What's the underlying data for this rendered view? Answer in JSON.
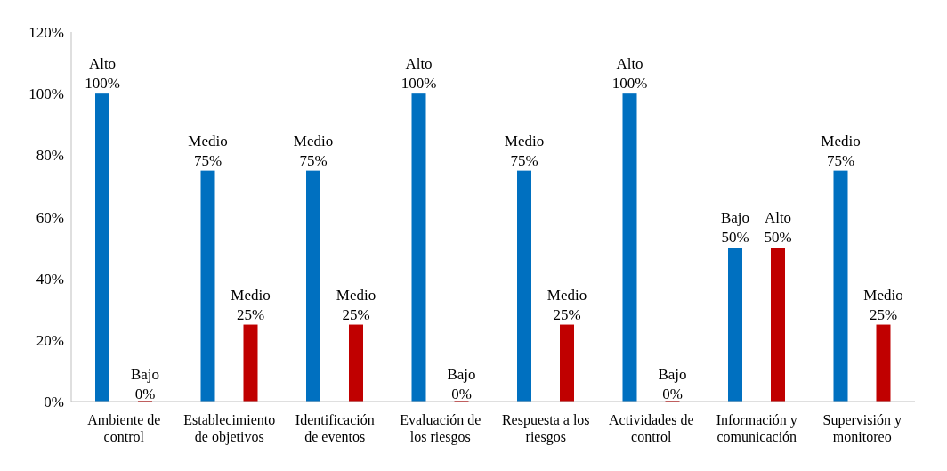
{
  "chart_data": {
    "type": "bar",
    "categories": [
      "Ambiente de control",
      "Establecimiento de objetivos",
      "Identificación de eventos",
      "Evaluación de los riesgos",
      "Respuesta a los riesgos",
      "Actividades de control",
      "Información y comunicación",
      "Supervisión y monitoreo"
    ],
    "series": [
      {
        "color": "#0070c0",
        "values": [
          100,
          75,
          75,
          100,
          75,
          100,
          50,
          75
        ],
        "value_labels": [
          "Alto\n100%",
          "Medio\n75%",
          "Medio\n75%",
          "Alto\n100%",
          "Medio\n75%",
          "Alto\n100%",
          "Bajo\n50%",
          "Medio\n75%"
        ]
      },
      {
        "color": "#c00000",
        "values": [
          0,
          25,
          25,
          0,
          25,
          0,
          50,
          25
        ],
        "value_labels": [
          "Bajo\n0%",
          "Medio\n25%",
          "Medio\n25%",
          "Bajo\n0%",
          "Medio\n25%",
          "Bajo\n0%",
          "Alto\n50%",
          "Medio\n25%"
        ]
      }
    ],
    "ylim": [
      0,
      120
    ],
    "yticks": [
      {
        "value": 0,
        "label": "0%"
      },
      {
        "value": 20,
        "label": "20%"
      },
      {
        "value": 40,
        "label": "40%"
      },
      {
        "value": 60,
        "label": "60%"
      },
      {
        "value": 80,
        "label": "80%"
      },
      {
        "value": 100,
        "label": "100%"
      },
      {
        "value": 120,
        "label": "120%"
      }
    ],
    "grid": false,
    "legend": false
  }
}
